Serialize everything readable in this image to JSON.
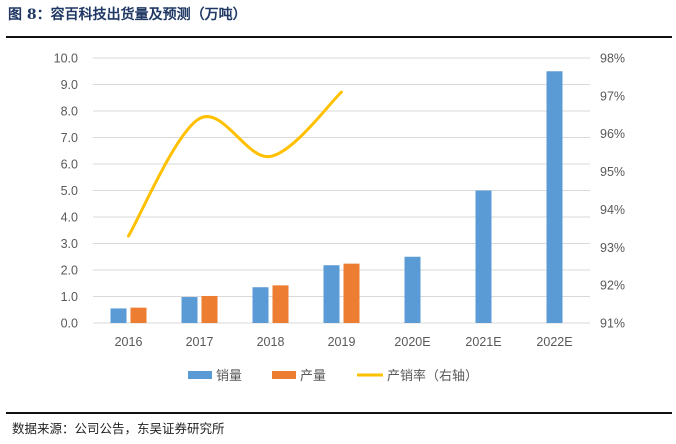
{
  "title": "图 8：容百科技出货量及预测（万吨）",
  "source": "数据来源：公司公告，东吴证券研究所",
  "chart_data": {
    "type": "bar",
    "title": "图 8：容百科技出货量及预测（万吨）",
    "categories": [
      "2016",
      "2017",
      "2018",
      "2019",
      "2020E",
      "2021E",
      "2022E"
    ],
    "left_axis": {
      "range": [
        0,
        10
      ],
      "ticks": [
        "0.0",
        "1.0",
        "2.0",
        "3.0",
        "4.0",
        "5.0",
        "6.0",
        "7.0",
        "8.0",
        "9.0",
        "10.0"
      ]
    },
    "right_axis": {
      "range": [
        91,
        98
      ],
      "ticks": [
        "91%",
        "92%",
        "93%",
        "94%",
        "95%",
        "96%",
        "97%",
        "98%"
      ]
    },
    "grid": true,
    "legend_placement": "bottom",
    "series": [
      {
        "name": "销量",
        "type": "bar",
        "axis": "left",
        "color": "#5b9bd5",
        "values": [
          0.55,
          0.98,
          1.35,
          2.18,
          2.5,
          5.0,
          9.5
        ]
      },
      {
        "name": "产量",
        "type": "bar",
        "axis": "left",
        "color": "#ed7d31",
        "values": [
          0.58,
          1.02,
          1.42,
          2.24,
          null,
          null,
          null
        ]
      },
      {
        "name": "产销率（右轴）",
        "type": "line",
        "axis": "right",
        "color": "#ffc000",
        "values": [
          93.3,
          96.4,
          95.4,
          97.1,
          null,
          null,
          null
        ]
      }
    ]
  }
}
